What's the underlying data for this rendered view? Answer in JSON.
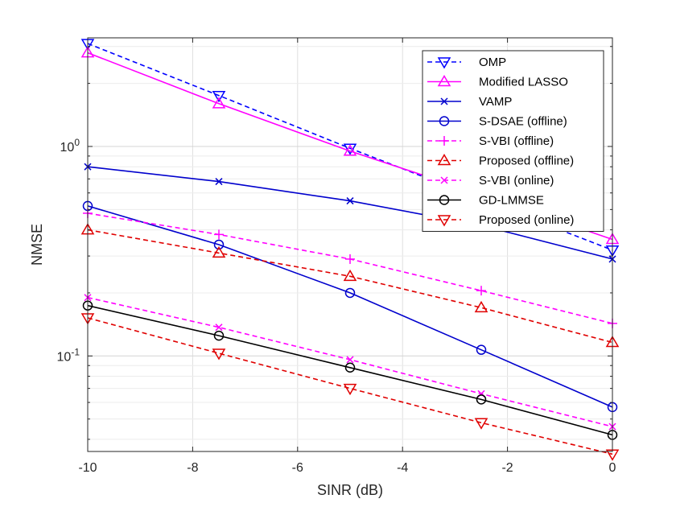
{
  "chart_data": {
    "type": "line",
    "xlabel": "SINR (dB)",
    "ylabel": "NMSE",
    "xlim": [
      -10,
      0
    ],
    "ylim": [
      0.035,
      3.3
    ],
    "yscale": "log",
    "grid": true,
    "legend_position": "top-right",
    "x": [
      -10,
      -7.5,
      -5,
      -2.5,
      0
    ],
    "x_ticks": [
      "-10",
      "-8",
      "-6",
      "-4",
      "-2",
      "0"
    ],
    "y_ticks": [
      {
        "base": "10",
        "exp": "0"
      },
      {
        "base": "10",
        "exp": "-1"
      }
    ],
    "series": [
      {
        "name": "OMP",
        "values": [
          3.1,
          1.75,
          0.98,
          0.56,
          0.32
        ],
        "color": "#0000FF",
        "dash": "dashed",
        "marker": "triangle-down"
      },
      {
        "name": "Modified LASSO",
        "values": [
          2.8,
          1.6,
          0.95,
          0.59,
          0.36
        ],
        "color": "#FF00FF",
        "dash": "solid",
        "marker": "triangle-up"
      },
      {
        "name": "VAMP",
        "values": [
          0.8,
          0.68,
          0.55,
          0.42,
          0.29
        ],
        "color": "#0000CD",
        "dash": "solid",
        "marker": "x"
      },
      {
        "name": "S-DSAE (offline)",
        "values": [
          0.52,
          0.34,
          0.2,
          0.107,
          0.057
        ],
        "color": "#0000CD",
        "dash": "solid",
        "marker": "circle"
      },
      {
        "name": "S-VBI (offline)",
        "values": [
          0.48,
          0.38,
          0.29,
          0.205,
          0.143
        ],
        "color": "#FF00FF",
        "dash": "dashed",
        "marker": "plus"
      },
      {
        "name": "Proposed (offline)",
        "values": [
          0.4,
          0.31,
          0.24,
          0.17,
          0.116
        ],
        "color": "#E00000",
        "dash": "dashed",
        "marker": "triangle-up"
      },
      {
        "name": "S-VBI (online)",
        "values": [
          0.19,
          0.137,
          0.096,
          0.066,
          0.046
        ],
        "color": "#FF00FF",
        "dash": "dashed",
        "marker": "x"
      },
      {
        "name": "GD-LMMSE",
        "values": [
          0.174,
          0.125,
          0.088,
          0.062,
          0.042
        ],
        "color": "#000000",
        "dash": "solid",
        "marker": "circle"
      },
      {
        "name": "Proposed (online)",
        "values": [
          0.152,
          0.103,
          0.07,
          0.048,
          0.034
        ],
        "color": "#E00000",
        "dash": "dashed",
        "marker": "triangle-down"
      }
    ]
  }
}
